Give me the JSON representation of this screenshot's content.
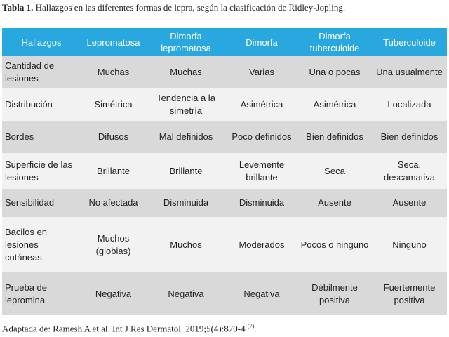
{
  "caption": {
    "label": "Tabla 1.",
    "text": "Hallazgos en las diferentes formas de lepra, según la clasificación de Ridley-Jopling."
  },
  "table": {
    "headers": [
      "Hallazgos",
      "Lepromatosa",
      "Dimorfa lepromatosa",
      "Dimorfa",
      "Dimorfa tuberculoide",
      "Tuberculoide"
    ],
    "rows": [
      [
        "Cantidad de lesiones",
        "Muchas",
        "Muchas",
        "Varias",
        "Una o pocas",
        "Una usualmente"
      ],
      [
        "Distribución",
        "Simétrica",
        "Tendencia a la simetría",
        "Asimétrica",
        "Asimétrica",
        "Localizada"
      ],
      [
        "Bordes",
        "Difusos",
        "Mal definidos",
        "Poco definidos",
        "Bien definidos",
        "Bien definidos"
      ],
      [
        "Superficie de las lesiones",
        "Brillante",
        "Brillante",
        "Levemente brillante",
        "Seca",
        "Seca, descamativa"
      ],
      [
        "Sensibilidad",
        "No afectada",
        "Disminuida",
        "Disminuida",
        "Ausente",
        "Ausente"
      ],
      [
        "Bacilos en lesiones cutáneas",
        "Muchos (globias)",
        "Muchos",
        "Moderados",
        "Pocos o ninguno",
        "Ninguno"
      ],
      [
        "Prueba de lepromina",
        "Negativa",
        "Negativa",
        "Negativa",
        "Débilmente positiva",
        "Fuertemente positiva"
      ]
    ]
  },
  "footnote": {
    "text": "Adaptada de: Ramesh A et al. Int J Res Dermatol. 2019;5(4):870-4",
    "ref": "(7)",
    "end": "."
  }
}
